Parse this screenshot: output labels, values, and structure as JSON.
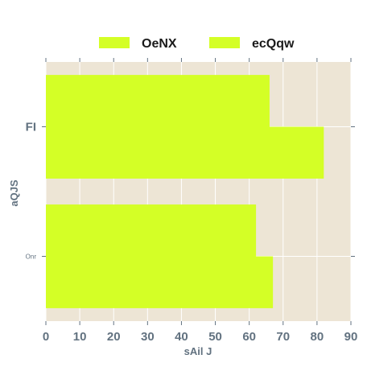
{
  "chart_data": {
    "type": "bar",
    "orientation": "horizontal",
    "categories": [
      "Onr",
      "FI"
    ],
    "series": [
      {
        "name": "OeNX",
        "values": [
          62,
          66
        ],
        "color": "#d4ff26"
      },
      {
        "name": "ecQqw",
        "values": [
          67,
          82
        ],
        "color": "#d4ff26"
      }
    ],
    "xlabel": "sAil J",
    "ylabel": "aQJS",
    "xlim": [
      0,
      90
    ],
    "xticks": [
      0,
      10,
      20,
      30,
      40,
      50,
      60,
      70,
      80,
      90
    ],
    "grid": true,
    "legend_position": "top-center",
    "plot_background": "#ede5d5",
    "tick_label_color": "#627280"
  }
}
